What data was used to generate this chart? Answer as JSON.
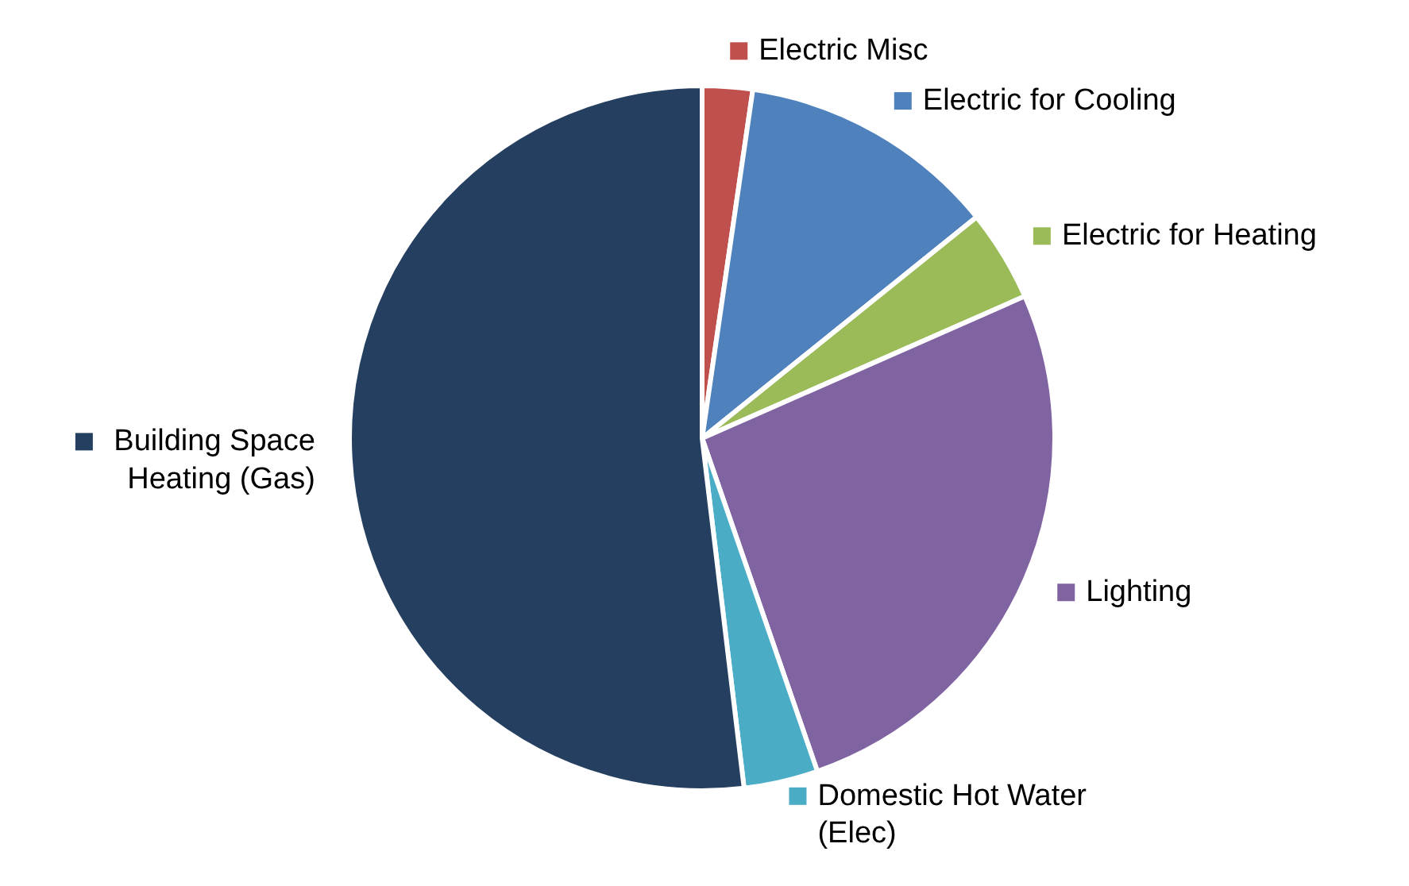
{
  "chart_data": {
    "type": "pie",
    "categories": [
      "Electric Misc",
      "Electric for Cooling",
      "Electric for Heating",
      "Lighting",
      "Domestic Hot Water (Elec)",
      "Building Space Heating (Gas)"
    ],
    "values": [
      2.3,
      11.9,
      4.2,
      26.3,
      3.4,
      51.9
    ],
    "colors": [
      "#c0504d",
      "#4f81bd",
      "#9bbb59",
      "#8064a2",
      "#4bacc6",
      "#243f60"
    ],
    "legend": "right"
  }
}
